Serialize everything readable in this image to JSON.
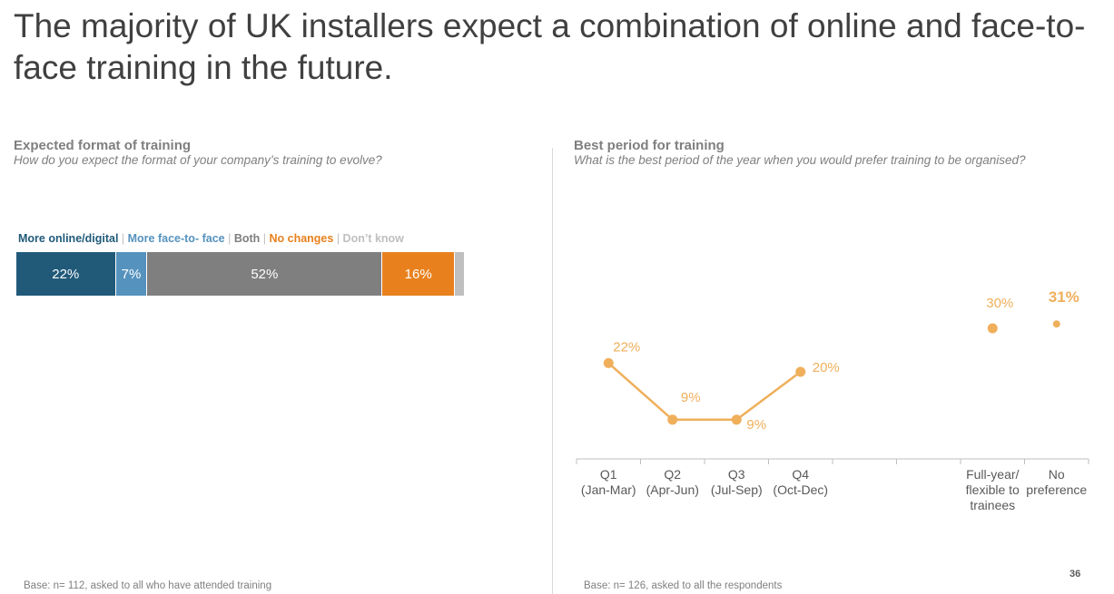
{
  "title": "The majority of UK installers expect a combination of online and face-to-face training in the future.",
  "left_panel": {
    "title": "Expected format of training",
    "subtitle": "How do you expect the format of your company’s training to evolve?",
    "footer": "Base: n= 112, asked to all who have attended training"
  },
  "right_panel": {
    "title": "Best period for training",
    "subtitle": "What is the best period of the year when you would prefer training to be organised?",
    "footer": "Base: n= 126, asked to all the respondents"
  },
  "page_number": "36",
  "legend": [
    {
      "label": "More online/digital",
      "color": "#215a79"
    },
    {
      "label": "More face-to- face",
      "color": "#5592be"
    },
    {
      "label": "Both",
      "color": "#7f7f7f"
    },
    {
      "label": "No changes",
      "color": "#e8811d"
    },
    {
      "label": "Don’t know",
      "color": "#bfbfbf"
    }
  ],
  "chart_data": [
    {
      "type": "bar",
      "orientation": "horizontal-stacked-100",
      "title": "Expected format of training",
      "series": [
        {
          "name": "More online/digital",
          "value": 22,
          "label": "22%",
          "color": "#215a79"
        },
        {
          "name": "More face-to- face",
          "value": 7,
          "label": "7%",
          "color": "#5592be"
        },
        {
          "name": "Both",
          "value": 52,
          "label": "52%",
          "color": "#7f7f7f"
        },
        {
          "name": "No changes",
          "value": 16,
          "label": "16%",
          "color": "#e8811d"
        },
        {
          "name": "Don’t know",
          "value": 2,
          "label": "",
          "color": "#bfbfbf"
        }
      ]
    },
    {
      "type": "line",
      "title": "Best period for training",
      "color": "#efaf5b",
      "categories": [
        [
          "Q1",
          "(Jan-Mar)"
        ],
        [
          "Q2",
          "(Apr-Jun)"
        ],
        [
          "Q3",
          "(Jul-Sep)"
        ],
        [
          "Q4",
          "(Oct-Dec)"
        ],
        [
          ""
        ],
        [
          ""
        ],
        [
          "Full-year/",
          "flexible to",
          "trainees"
        ],
        [
          "No",
          "preference"
        ]
      ],
      "values": [
        22,
        9,
        9,
        20,
        null,
        null,
        30,
        31
      ],
      "labels": [
        "22%",
        "9%",
        "9%",
        "20%",
        "",
        "",
        "30%",
        "31%"
      ],
      "connected_indices": [
        0,
        1,
        2,
        3
      ],
      "emphasized_index": 7,
      "ylim": [
        0,
        35
      ]
    }
  ]
}
